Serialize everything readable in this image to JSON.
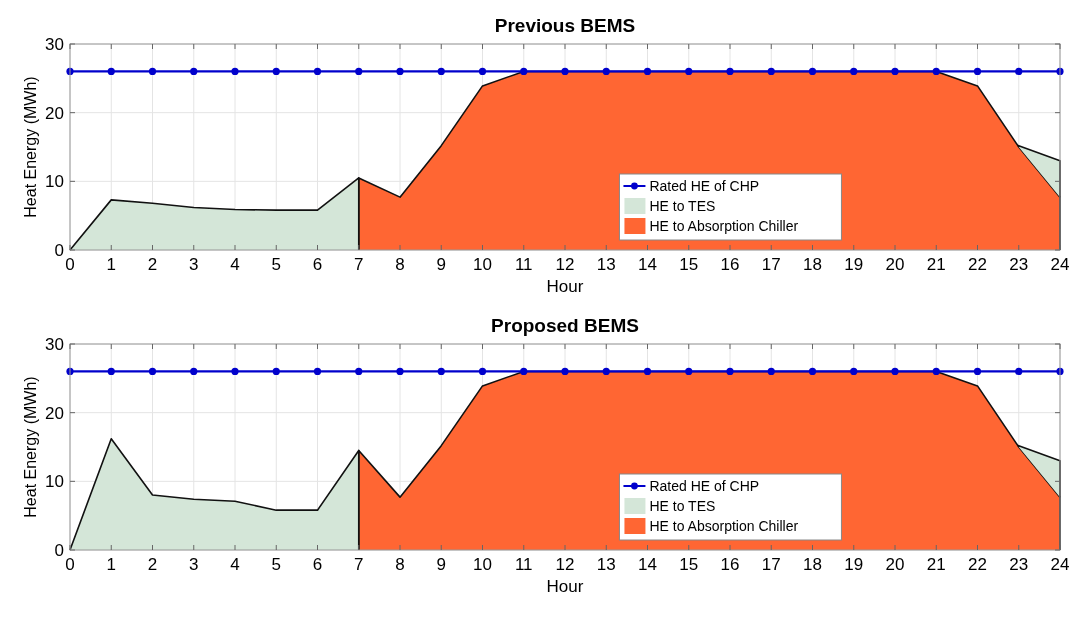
{
  "chart_data": [
    {
      "type": "area",
      "title": "Previous BEMS",
      "xlabel": "Hour",
      "ylabel": "Heat Energy (MWh)",
      "x": [
        0,
        1,
        2,
        3,
        4,
        5,
        6,
        7,
        8,
        9,
        10,
        11,
        12,
        13,
        14,
        15,
        16,
        17,
        18,
        19,
        20,
        21,
        22,
        23,
        24
      ],
      "xlim": [
        0,
        24
      ],
      "xticks": [
        0,
        1,
        2,
        3,
        4,
        5,
        6,
        7,
        8,
        9,
        10,
        11,
        12,
        13,
        14,
        15,
        16,
        17,
        18,
        19,
        20,
        21,
        22,
        23,
        24
      ],
      "ylim": [
        0,
        30
      ],
      "yticks": [
        0,
        10,
        20,
        30
      ],
      "grid": true,
      "legend": "bottom",
      "series": [
        {
          "name": "Rated HE of CHP",
          "type": "line",
          "color": "#0000cc",
          "marker": "circle",
          "values": [
            26,
            26,
            26,
            26,
            26,
            26,
            26,
            26,
            26,
            26,
            26,
            26,
            26,
            26,
            26,
            26,
            26,
            26,
            26,
            26,
            26,
            26,
            26,
            26,
            26
          ]
        },
        {
          "name": "HE to TES",
          "color": "#d4e6d8",
          "values": [
            0,
            7.3,
            6.8,
            6.2,
            5.9,
            5.8,
            5.8,
            10.5,
            null,
            null,
            null,
            null,
            null,
            null,
            null,
            null,
            null,
            null,
            null,
            null,
            null,
            null,
            null,
            15.2,
            13
          ]
        },
        {
          "name": "HE to Absorption Chiller",
          "color": "#ff6633",
          "values": [
            null,
            null,
            null,
            null,
            null,
            null,
            null,
            10.5,
            7.7,
            15.2,
            23.9,
            26,
            26,
            26,
            26,
            26,
            26,
            26,
            26,
            26,
            26,
            26,
            23.9,
            15,
            7.7
          ]
        }
      ]
    },
    {
      "type": "area",
      "title": "Proposed BEMS",
      "xlabel": "Hour",
      "ylabel": "Heat Energy (MWh)",
      "x": [
        0,
        1,
        2,
        3,
        4,
        5,
        6,
        7,
        8,
        9,
        10,
        11,
        12,
        13,
        14,
        15,
        16,
        17,
        18,
        19,
        20,
        21,
        22,
        23,
        24
      ],
      "xlim": [
        0,
        24
      ],
      "xticks": [
        0,
        1,
        2,
        3,
        4,
        5,
        6,
        7,
        8,
        9,
        10,
        11,
        12,
        13,
        14,
        15,
        16,
        17,
        18,
        19,
        20,
        21,
        22,
        23,
        24
      ],
      "ylim": [
        0,
        30
      ],
      "yticks": [
        0,
        10,
        20,
        30
      ],
      "grid": true,
      "legend": "bottom",
      "series": [
        {
          "name": "Rated HE of CHP",
          "type": "line",
          "color": "#0000cc",
          "marker": "circle",
          "values": [
            26,
            26,
            26,
            26,
            26,
            26,
            26,
            26,
            26,
            26,
            26,
            26,
            26,
            26,
            26,
            26,
            26,
            26,
            26,
            26,
            26,
            26,
            26,
            26,
            26
          ]
        },
        {
          "name": "HE to TES",
          "color": "#d4e6d8",
          "values": [
            0,
            16.2,
            8,
            7.4,
            7.1,
            5.8,
            5.8,
            14.5,
            null,
            null,
            null,
            null,
            null,
            null,
            null,
            null,
            null,
            null,
            null,
            null,
            null,
            null,
            null,
            15.2,
            13
          ]
        },
        {
          "name": "HE to Absorption Chiller",
          "color": "#ff6633",
          "values": [
            null,
            null,
            null,
            null,
            null,
            null,
            null,
            14.5,
            7.7,
            15.2,
            23.9,
            26,
            26,
            26,
            26,
            26,
            26,
            26,
            26,
            26,
            26,
            26,
            23.9,
            15,
            7.7
          ]
        }
      ]
    }
  ]
}
